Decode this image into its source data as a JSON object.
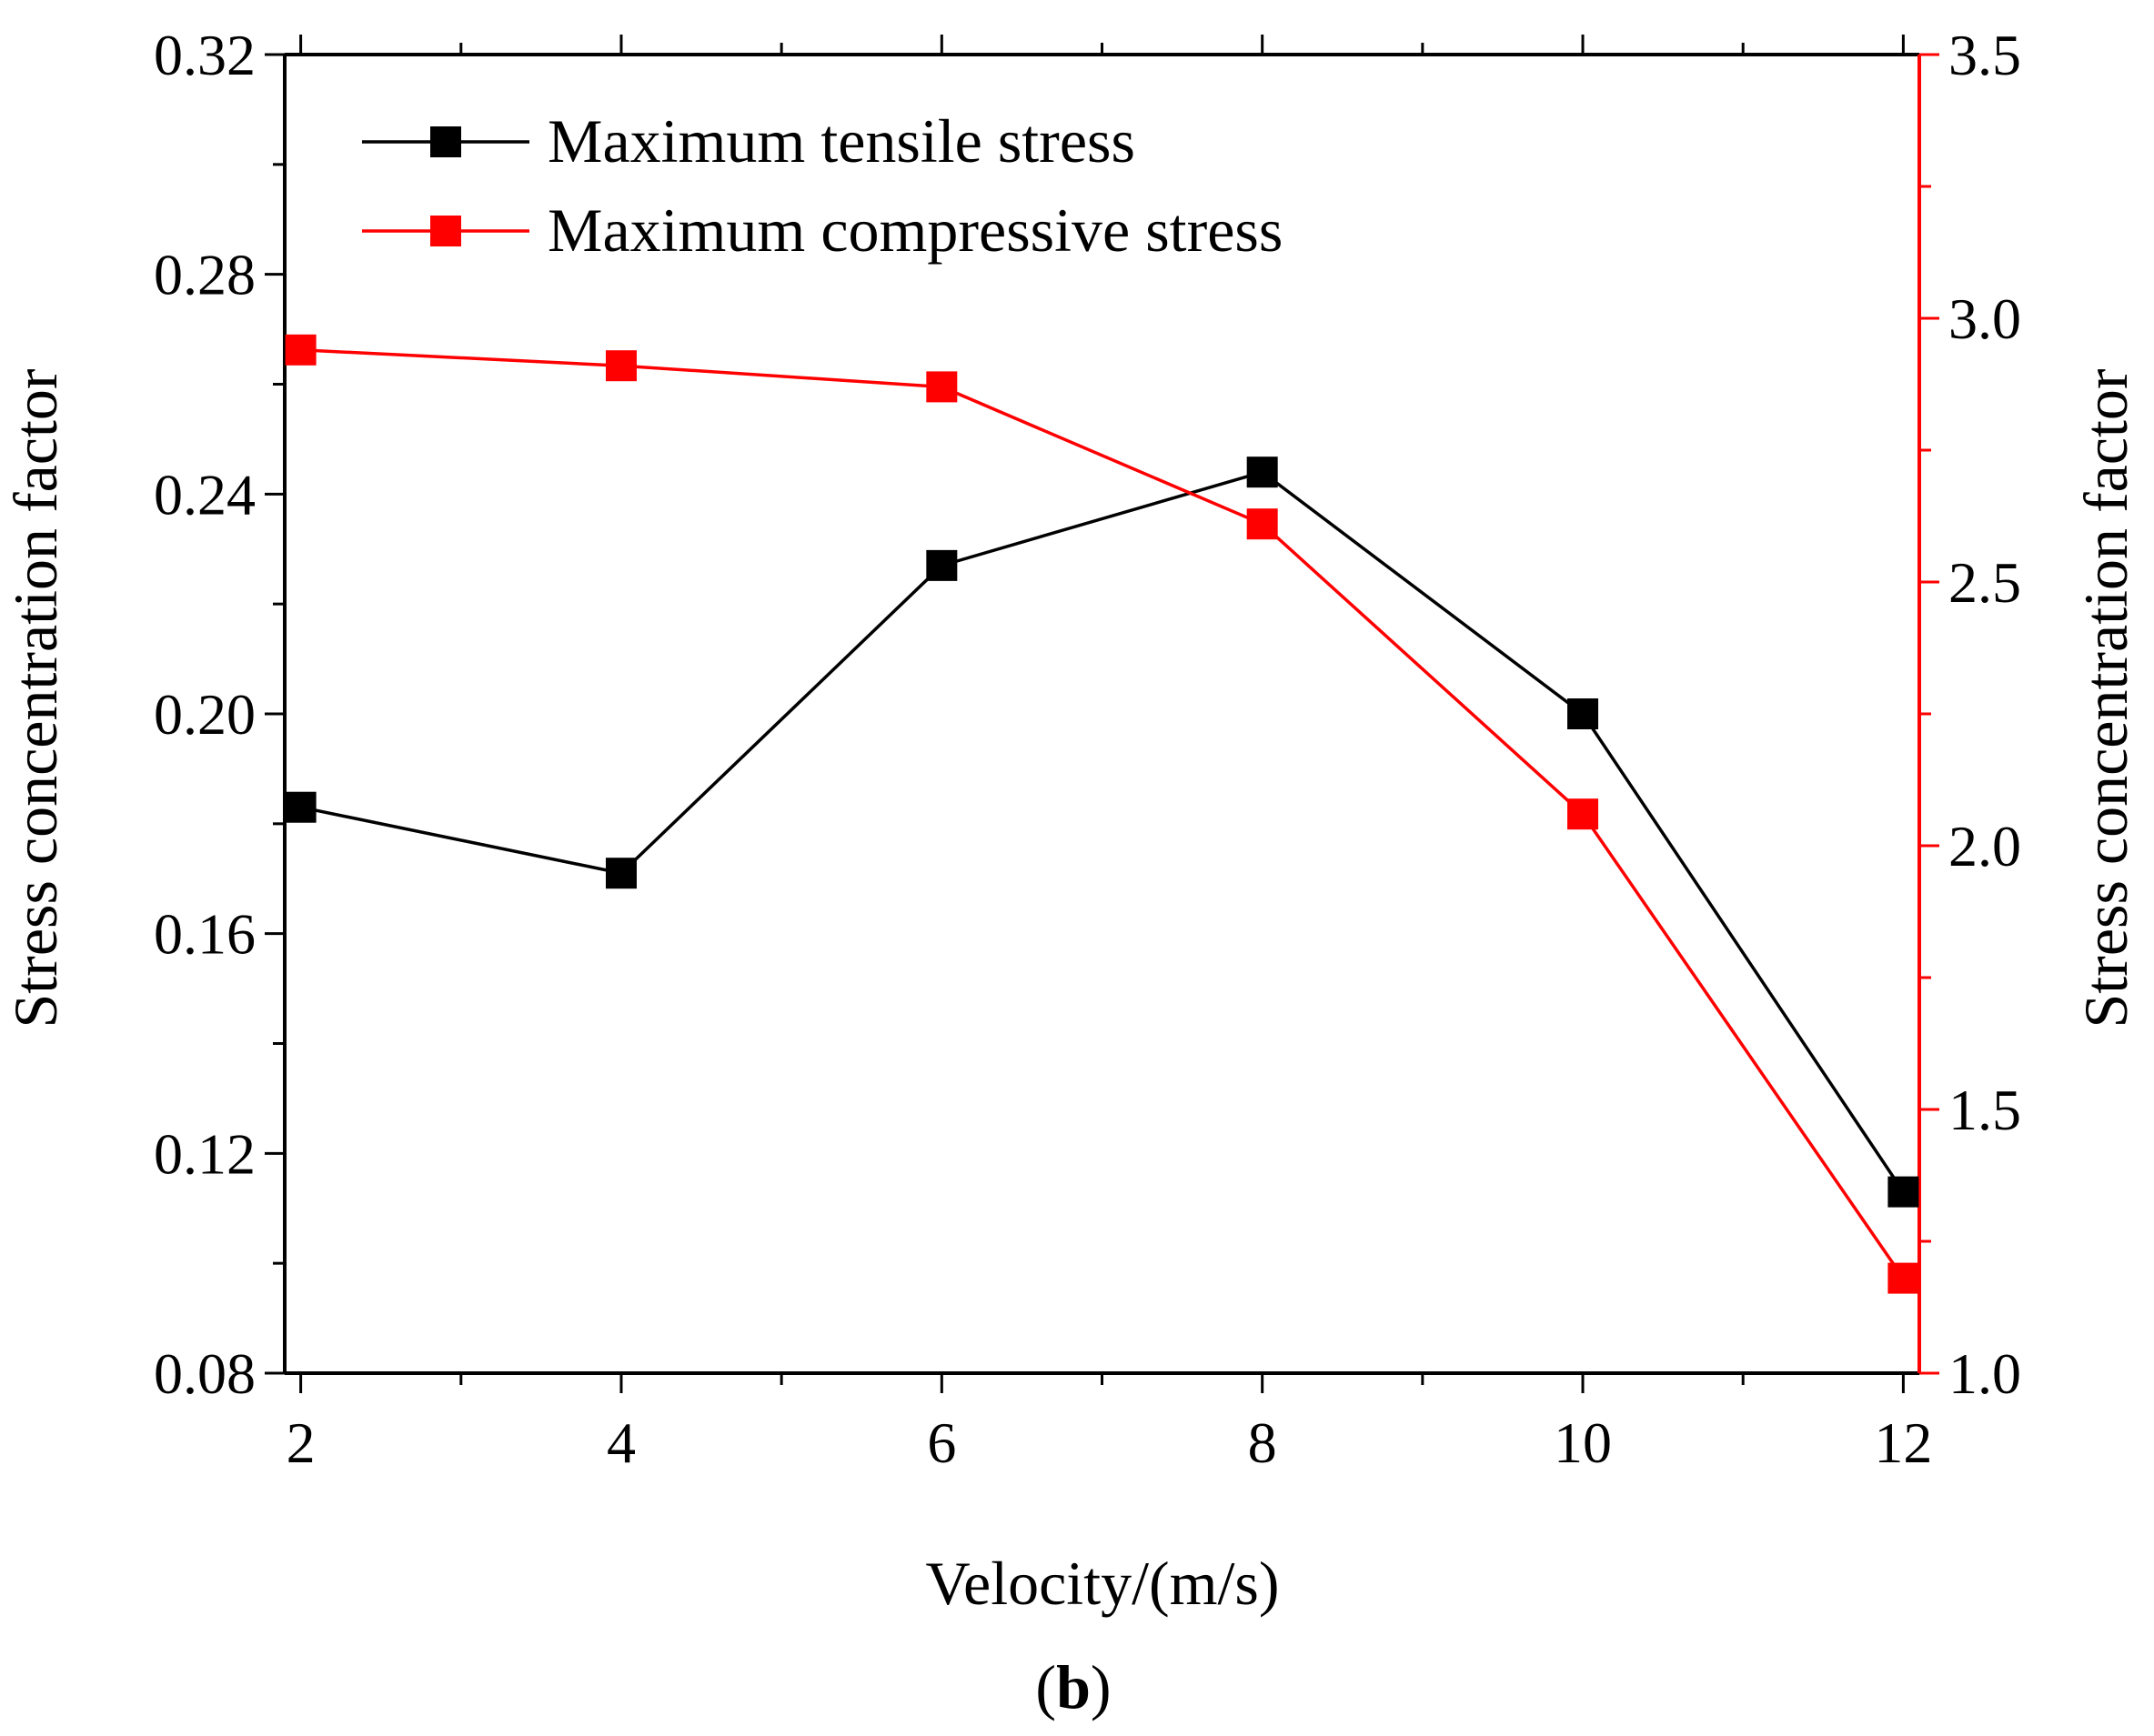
{
  "chart_data": {
    "type": "line",
    "xlabel": "Velocity/(m/s)",
    "ylabel": "Stress concentration factor",
    "y2label": "Stress concentration factor",
    "panel_label": "(b)",
    "panel_label_parts": {
      "open": "(",
      "letter": "b",
      "close": ")"
    },
    "x": [
      2,
      4,
      6,
      8,
      10,
      12
    ],
    "xlim": [
      1.9,
      12.1
    ],
    "ylim": [
      0.08,
      0.32
    ],
    "y2lim": [
      1.0,
      3.5
    ],
    "xticks": [
      "2",
      "4",
      "6",
      "8",
      "10",
      "12"
    ],
    "yticks": [
      "0.08",
      "0.12",
      "0.16",
      "0.20",
      "0.24",
      "0.28",
      "0.32"
    ],
    "y2ticks": [
      "1.0",
      "1.5",
      "2.0",
      "2.5",
      "3.0",
      "3.5"
    ],
    "legend_position": "top-left",
    "grid": false,
    "series": [
      {
        "name": "Maximum tensile stress",
        "axis": "left",
        "color": "#000000",
        "marker": "square",
        "values": [
          0.183,
          0.171,
          0.227,
          0.244,
          0.2,
          0.113
        ]
      },
      {
        "name": "Maximum compressive stress",
        "axis": "right",
        "color": "#ff0000",
        "marker": "square",
        "values": [
          2.94,
          2.91,
          2.87,
          2.61,
          2.06,
          1.18
        ]
      }
    ]
  }
}
